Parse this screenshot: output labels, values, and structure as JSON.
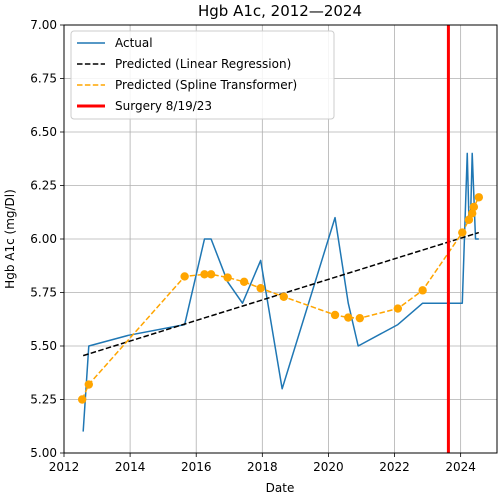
{
  "chart_data": {
    "type": "line",
    "title": "Hgb A1c, 2012—2024",
    "xlabel": "Date",
    "ylabel": "Hgb A1c (mg/Dl)",
    "xlim": [
      2012,
      2025.1
    ],
    "ylim": [
      5.0,
      7.0
    ],
    "xticks": [
      2012,
      2014,
      2016,
      2018,
      2020,
      2022,
      2024
    ],
    "yticks": [
      5.0,
      5.25,
      5.5,
      5.75,
      6.0,
      6.25,
      6.5,
      6.75,
      7.0
    ],
    "ytick_labels": [
      "5.00",
      "5.25",
      "5.50",
      "5.75",
      "6.00",
      "6.25",
      "6.50",
      "6.75",
      "7.00"
    ],
    "grid": true,
    "legend_position": "upper left",
    "series": [
      {
        "name": "Actual",
        "style": "line",
        "color": "#1f77b4",
        "x": [
          2012.58,
          2012.75,
          2013.95,
          2015.65,
          2016.25,
          2016.45,
          2016.95,
          2017.4,
          2017.95,
          2018.6,
          2020.2,
          2020.6,
          2020.9,
          2022.1,
          2022.85,
          2024.05,
          2024.2,
          2024.25,
          2024.3,
          2024.35,
          2024.4,
          2024.45,
          2024.55
        ],
        "y": [
          5.1,
          5.5,
          5.55,
          5.6,
          6.0,
          6.0,
          5.8,
          5.7,
          5.9,
          5.3,
          6.1,
          5.7,
          5.5,
          5.6,
          5.7,
          5.7,
          6.4,
          6.1,
          6.1,
          6.4,
          6.2,
          6.0,
          6.0
        ]
      },
      {
        "name": "Predicted (Linear Regression)",
        "style": "dashed",
        "color": "#000000",
        "x": [
          2012.58,
          2024.55
        ],
        "y": [
          5.455,
          6.03
        ]
      },
      {
        "name": "Predicted (Spline Transformer)",
        "style": "dashed-markers",
        "color": "#ffa500",
        "x": [
          2012.55,
          2012.75,
          2015.65,
          2016.25,
          2016.45,
          2016.95,
          2017.45,
          2017.95,
          2018.65,
          2020.2,
          2020.6,
          2020.95,
          2022.1,
          2022.85,
          2024.05,
          2024.25,
          2024.35,
          2024.4,
          2024.55
        ],
        "y": [
          5.25,
          5.32,
          5.825,
          5.835,
          5.835,
          5.82,
          5.8,
          5.77,
          5.73,
          5.645,
          5.633,
          5.63,
          5.675,
          5.76,
          6.03,
          6.09,
          6.12,
          6.15,
          6.195
        ]
      },
      {
        "name": "Surgery 8/19/23",
        "style": "vline",
        "color": "#ff0000",
        "x": 2023.63
      }
    ]
  }
}
